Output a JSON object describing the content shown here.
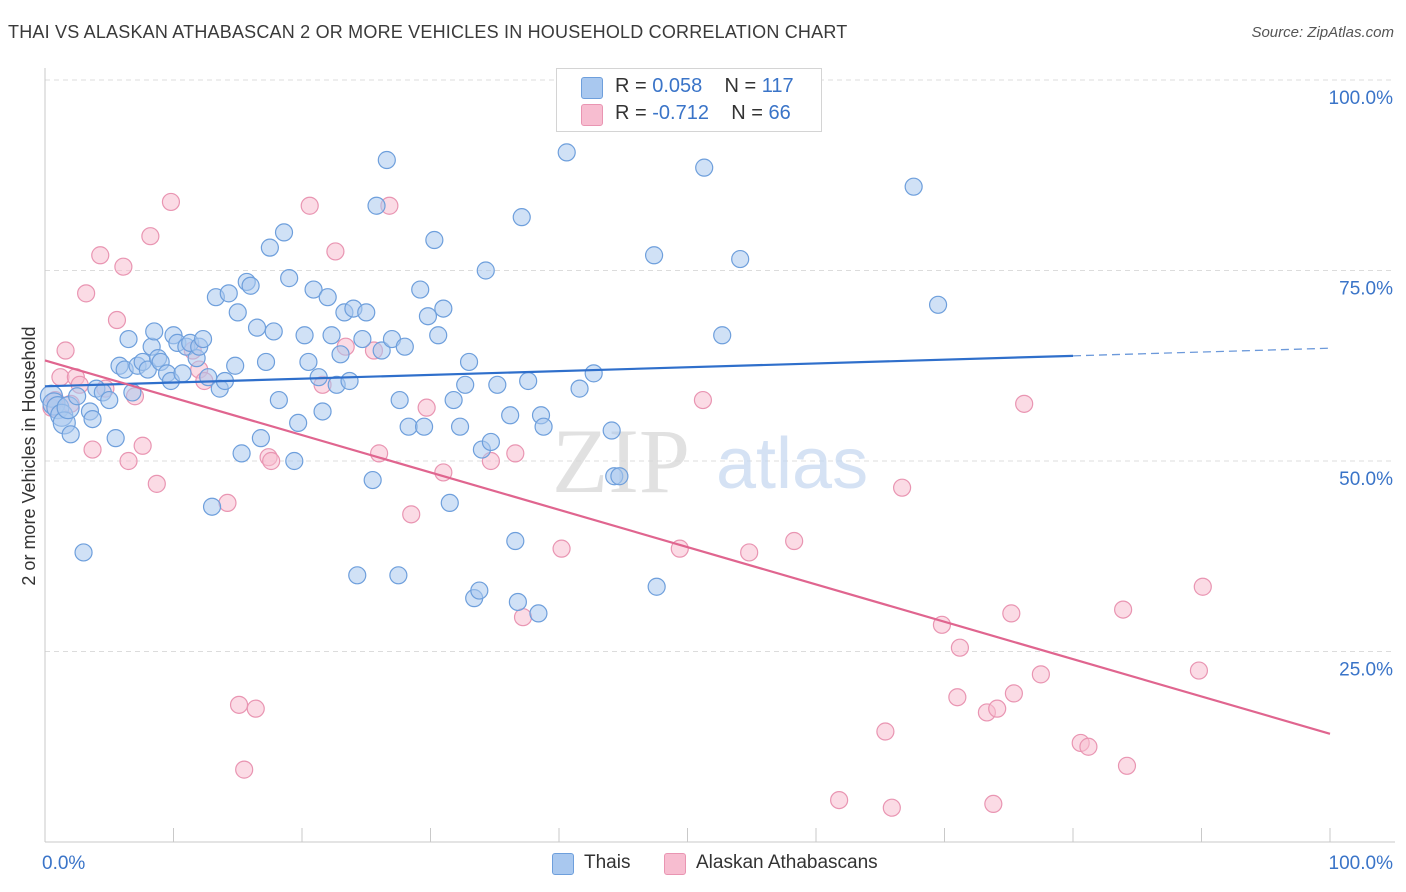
{
  "title": "THAI VS ALASKAN ATHABASCAN 2 OR MORE VEHICLES IN HOUSEHOLD CORRELATION CHART",
  "source": "Source: ZipAtlas.com",
  "watermark": {
    "zip": "ZIP",
    "atlas": "atlas"
  },
  "legend": {
    "rows": [
      {
        "r_label": "R = ",
        "r_value": "0.058",
        "n_label": "N = ",
        "n_value": "117"
      },
      {
        "r_label": "R = ",
        "r_value": "-0.712",
        "n_label": "N = ",
        "n_value": "66"
      }
    ]
  },
  "colors": {
    "thai_fill": "#a9c8ef",
    "thai_stroke": "#6e9fdc",
    "thai_line": "#2f6fcb",
    "alaskan_fill": "#f7bdd0",
    "alaskan_stroke": "#e995b2",
    "alaskan_line": "#e0658f",
    "grid": "#dcdcdc",
    "axis_text": "#3a74c8"
  },
  "chart_data": {
    "type": "scatter",
    "title": "THAI VS ALASKAN ATHABASCAN 2 OR MORE VEHICLES IN HOUSEHOLD CORRELATION CHART",
    "xlabel": "",
    "ylabel": "2 or more Vehicles in Household",
    "xlim": [
      0,
      100
    ],
    "ylim": [
      0,
      100
    ],
    "x_tick_labels": [
      "0.0%",
      "100.0%"
    ],
    "y_tick_labels": [
      "100.0%",
      "75.0%",
      "50.0%",
      "25.0%"
    ],
    "y_ticks": [
      100,
      75,
      50,
      25
    ],
    "grid": true,
    "legend_position": "bottom",
    "series": [
      {
        "name": "Thais",
        "r": 0.058,
        "n": 117,
        "trend": {
          "x0": 0,
          "y0": 59.8,
          "x1": 80,
          "y1": 63.8,
          "dashed_to_x": 100,
          "dashed_to_y": 64.8
        },
        "points": [
          [
            0.5,
            58.5
          ],
          [
            0.7,
            57.5
          ],
          [
            1.0,
            57.0
          ],
          [
            1.3,
            56.0
          ],
          [
            1.5,
            55.0
          ],
          [
            1.8,
            57.0
          ],
          [
            2.0,
            53.5
          ],
          [
            2.5,
            58.5
          ],
          [
            3.0,
            38.0
          ],
          [
            3.5,
            56.5
          ],
          [
            3.7,
            55.5
          ],
          [
            4.0,
            59.5
          ],
          [
            4.5,
            59.0
          ],
          [
            5.0,
            58.0
          ],
          [
            5.5,
            53.0
          ],
          [
            5.8,
            62.5
          ],
          [
            6.2,
            62.0
          ],
          [
            6.5,
            66.0
          ],
          [
            6.8,
            59.0
          ],
          [
            7.2,
            62.5
          ],
          [
            7.6,
            63.0
          ],
          [
            8.0,
            62.0
          ],
          [
            8.3,
            65.0
          ],
          [
            8.5,
            67.0
          ],
          [
            8.8,
            63.5
          ],
          [
            9.0,
            63.0
          ],
          [
            9.5,
            61.5
          ],
          [
            9.8,
            60.5
          ],
          [
            10.0,
            66.5
          ],
          [
            10.3,
            65.5
          ],
          [
            10.7,
            61.5
          ],
          [
            11.0,
            65.0
          ],
          [
            11.3,
            65.5
          ],
          [
            11.8,
            63.5
          ],
          [
            12.0,
            65.0
          ],
          [
            12.3,
            66.0
          ],
          [
            12.7,
            61.0
          ],
          [
            13.0,
            44.0
          ],
          [
            13.3,
            71.5
          ],
          [
            13.6,
            59.5
          ],
          [
            14.0,
            60.5
          ],
          [
            14.3,
            72.0
          ],
          [
            14.8,
            62.5
          ],
          [
            15.0,
            69.5
          ],
          [
            15.3,
            51.0
          ],
          [
            15.7,
            73.5
          ],
          [
            16.0,
            73.0
          ],
          [
            16.5,
            67.5
          ],
          [
            16.8,
            53.0
          ],
          [
            17.2,
            63.0
          ],
          [
            17.5,
            78.0
          ],
          [
            17.8,
            67.0
          ],
          [
            18.2,
            58.0
          ],
          [
            18.6,
            80.0
          ],
          [
            19.0,
            74.0
          ],
          [
            19.4,
            50.0
          ],
          [
            19.7,
            55.0
          ],
          [
            20.2,
            66.5
          ],
          [
            20.5,
            63.0
          ],
          [
            20.9,
            72.5
          ],
          [
            21.3,
            61.0
          ],
          [
            21.6,
            56.5
          ],
          [
            22.0,
            71.5
          ],
          [
            22.3,
            66.5
          ],
          [
            22.7,
            60.0
          ],
          [
            23.0,
            64.0
          ],
          [
            23.3,
            69.5
          ],
          [
            23.7,
            60.5
          ],
          [
            24.0,
            70.0
          ],
          [
            24.3,
            35.0
          ],
          [
            24.7,
            66.0
          ],
          [
            25.0,
            69.5
          ],
          [
            25.5,
            47.5
          ],
          [
            25.8,
            83.5
          ],
          [
            26.2,
            64.5
          ],
          [
            26.6,
            89.5
          ],
          [
            27.0,
            66.0
          ],
          [
            27.5,
            35.0
          ],
          [
            27.6,
            58.0
          ],
          [
            28.0,
            65.0
          ],
          [
            28.3,
            54.5
          ],
          [
            29.2,
            72.5
          ],
          [
            29.5,
            54.5
          ],
          [
            29.8,
            69.0
          ],
          [
            30.3,
            79.0
          ],
          [
            30.6,
            66.5
          ],
          [
            31.0,
            70.0
          ],
          [
            31.5,
            44.5
          ],
          [
            31.8,
            58.0
          ],
          [
            32.3,
            54.5
          ],
          [
            32.7,
            60.0
          ],
          [
            33.0,
            63.0
          ],
          [
            33.4,
            32.0
          ],
          [
            33.8,
            33.0
          ],
          [
            34.0,
            51.5
          ],
          [
            34.3,
            75.0
          ],
          [
            34.7,
            52.5
          ],
          [
            35.2,
            60.0
          ],
          [
            36.2,
            56.0
          ],
          [
            36.6,
            39.5
          ],
          [
            36.8,
            31.5
          ],
          [
            37.1,
            82.0
          ],
          [
            37.6,
            60.5
          ],
          [
            38.4,
            30.0
          ],
          [
            38.6,
            56.0
          ],
          [
            38.8,
            54.5
          ],
          [
            40.6,
            90.5
          ],
          [
            41.6,
            59.5
          ],
          [
            42.7,
            61.5
          ],
          [
            44.1,
            54.0
          ],
          [
            44.3,
            48.0
          ],
          [
            44.7,
            48.0
          ],
          [
            47.4,
            77.0
          ],
          [
            47.6,
            33.5
          ],
          [
            51.3,
            88.5
          ],
          [
            52.7,
            66.5
          ],
          [
            54.1,
            76.5
          ],
          [
            67.6,
            86.0
          ],
          [
            69.5,
            70.5
          ]
        ]
      },
      {
        "name": "Alaskan Athabascans",
        "r": -0.712,
        "n": 66,
        "trend": {
          "x0": 0,
          "y0": 63.2,
          "x1": 100,
          "y1": 14.2
        },
        "points": [
          [
            0.5,
            57.0
          ],
          [
            0.8,
            58.0
          ],
          [
            1.2,
            61.0
          ],
          [
            1.6,
            64.5
          ],
          [
            2.0,
            57.5
          ],
          [
            2.4,
            61.0
          ],
          [
            2.7,
            60.0
          ],
          [
            3.2,
            72.0
          ],
          [
            3.7,
            51.5
          ],
          [
            4.3,
            77.0
          ],
          [
            4.7,
            59.5
          ],
          [
            5.6,
            68.5
          ],
          [
            6.1,
            75.5
          ],
          [
            6.5,
            50.0
          ],
          [
            7.0,
            58.5
          ],
          [
            7.6,
            52.0
          ],
          [
            8.2,
            79.5
          ],
          [
            8.7,
            47.0
          ],
          [
            9.8,
            84.0
          ],
          [
            11.5,
            64.5
          ],
          [
            12.0,
            62.0
          ],
          [
            12.4,
            60.5
          ],
          [
            14.2,
            44.5
          ],
          [
            15.1,
            18.0
          ],
          [
            15.5,
            9.5
          ],
          [
            16.4,
            17.5
          ],
          [
            17.4,
            50.5
          ],
          [
            17.6,
            50.0
          ],
          [
            20.6,
            83.5
          ],
          [
            21.6,
            60.0
          ],
          [
            22.6,
            77.5
          ],
          [
            23.4,
            65.0
          ],
          [
            25.6,
            64.5
          ],
          [
            26.0,
            51.0
          ],
          [
            26.8,
            83.5
          ],
          [
            28.5,
            43.0
          ],
          [
            29.7,
            57.0
          ],
          [
            31.0,
            48.5
          ],
          [
            34.7,
            50.0
          ],
          [
            36.6,
            51.0
          ],
          [
            37.2,
            29.5
          ],
          [
            40.2,
            38.5
          ],
          [
            49.4,
            38.5
          ],
          [
            51.2,
            58.0
          ],
          [
            54.8,
            38.0
          ],
          [
            58.3,
            39.5
          ],
          [
            61.8,
            5.5
          ],
          [
            65.4,
            14.5
          ],
          [
            65.9,
            4.5
          ],
          [
            66.7,
            46.5
          ],
          [
            69.8,
            28.5
          ],
          [
            71.0,
            19.0
          ],
          [
            71.2,
            25.5
          ],
          [
            73.3,
            17.0
          ],
          [
            73.8,
            5.0
          ],
          [
            74.1,
            17.5
          ],
          [
            75.2,
            30.0
          ],
          [
            75.4,
            19.5
          ],
          [
            76.2,
            57.5
          ],
          [
            77.5,
            22.0
          ],
          [
            80.6,
            13.0
          ],
          [
            81.2,
            12.5
          ],
          [
            83.9,
            30.5
          ],
          [
            84.2,
            10.0
          ],
          [
            89.8,
            22.5
          ],
          [
            90.1,
            33.5
          ]
        ]
      }
    ]
  }
}
